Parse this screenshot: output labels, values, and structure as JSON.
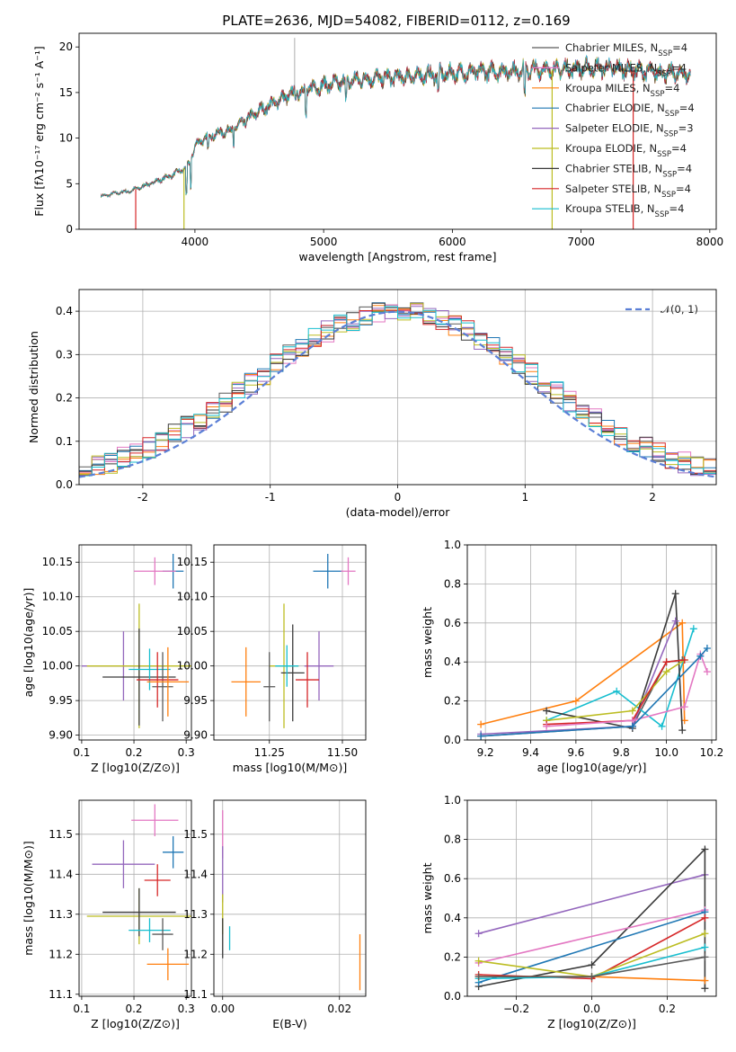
{
  "colors": {
    "Chabrier MILES": "#5a5a5a",
    "Salpeter MILES": "#e377c2",
    "Kroupa MILES": "#ff7f0e",
    "Chabrier ELODIE": "#1f77b4",
    "Salpeter ELODIE": "#9467bd",
    "Kroupa ELODIE": "#bcbd22",
    "Chabrier STELIB": "#3a3a3a",
    "Salpeter STELIB": "#d62728",
    "Kroupa STELIB": "#17becf"
  },
  "chart_data": [
    {
      "id": "spectrum",
      "type": "line",
      "title": "PLATE=2636, MJD=54082, FIBERID=0112, z=0.169",
      "xlabel": "wavelength [Angstrom, rest frame]",
      "ylabel": "Flux [fλ10⁻¹⁷ erg cm⁻² s⁻¹ A⁻¹]",
      "xlim": [
        3100,
        8050
      ],
      "ylim": [
        0,
        21.5
      ],
      "xticks": [
        4000,
        5000,
        6000,
        7000,
        8000
      ],
      "yticks": [
        0,
        5,
        10,
        15,
        20
      ],
      "grid": false,
      "legend_position": "right",
      "legend": [
        "Chabrier MILES, N_SSP=4",
        "Salpeter MILES, N_SSP=4",
        "Kroupa MILES, N_SSP=4",
        "Chabrier ELODIE, N_SSP=4",
        "Salpeter ELODIE, N_SSP=3",
        "Kroupa ELODIE, N_SSP=4",
        "Chabrier STELIB, N_SSP=4",
        "Salpeter STELIB, N_SSP=4",
        "Kroupa STELIB, N_SSP=4"
      ],
      "continuum": {
        "x": [
          3270,
          3400,
          3500,
          3650,
          3800,
          3900,
          3960,
          4000,
          4100,
          4300,
          4500,
          4700,
          4900,
          5100,
          5300,
          5500,
          5700,
          5900,
          6100,
          6300,
          6500,
          6700,
          6900,
          7100,
          7300,
          7500,
          7700,
          7850
        ],
        "y": [
          3.6,
          4.0,
          4.2,
          5.0,
          5.8,
          6.5,
          7.2,
          9.2,
          10.2,
          11.0,
          13.0,
          14.5,
          15.5,
          16.0,
          16.5,
          16.6,
          16.8,
          17.0,
          17.2,
          17.3,
          17.4,
          17.5,
          17.6,
          17.7,
          17.6,
          17.3,
          17.1,
          17.0
        ]
      }
    },
    {
      "id": "residuals",
      "type": "histogram",
      "xlabel": "(data-model)/error",
      "ylabel": "Normed distribution",
      "xlim": [
        -2.5,
        2.5
      ],
      "ylim": [
        0,
        0.45
      ],
      "xticks": [
        -2,
        -1,
        0,
        1,
        2
      ],
      "yticks": [
        0.0,
        0.1,
        0.2,
        0.3,
        0.4
      ],
      "grid": true,
      "legend": [
        "𝒩(0, 1)"
      ],
      "legend_position": "top-right",
      "bin_width": 0.1
    },
    {
      "id": "age-vs-Z",
      "type": "errorbar",
      "xlabel": "Z [log10(Z/Z⊙)]",
      "ylabel": "age [log10(age/yr)]",
      "xlim": [
        0.095,
        0.31
      ],
      "ylim": [
        9.893,
        10.175
      ],
      "xticks": [
        0.1,
        0.2,
        0.3
      ],
      "yticks": [
        9.9,
        9.95,
        10.0,
        10.05,
        10.1,
        10.15
      ],
      "points": [
        {
          "model": "Chabrier ELODIE",
          "x": 0.275,
          "xerr": 0.02,
          "y": 10.137,
          "yerr": 0.025
        },
        {
          "model": "Salpeter MILES",
          "x": 0.24,
          "xerr": 0.04,
          "y": 10.137,
          "yerr": 0.02
        },
        {
          "model": "Salpeter ELODIE",
          "x": 0.18,
          "xerr": 0.08,
          "y": 10.0,
          "yerr": 0.05
        },
        {
          "model": "Kroupa ELODIE",
          "x": 0.21,
          "xerr": 0.1,
          "y": 10.0,
          "yerr": 0.09
        },
        {
          "model": "Chabrier STELIB",
          "x": 0.21,
          "xerr": 0.07,
          "y": 9.984,
          "yerr": 0.07
        },
        {
          "model": "Kroupa STELIB",
          "x": 0.23,
          "xerr": 0.04,
          "y": 9.995,
          "yerr": 0.03
        },
        {
          "model": "Chabrier MILES",
          "x": 0.255,
          "xerr": 0.02,
          "y": 9.97,
          "yerr": 0.05
        },
        {
          "model": "Salpeter STELIB",
          "x": 0.245,
          "xerr": 0.04,
          "y": 9.98,
          "yerr": 0.04
        },
        {
          "model": "Kroupa MILES",
          "x": 0.265,
          "xerr": 0.04,
          "y": 9.977,
          "yerr": 0.05
        }
      ]
    },
    {
      "id": "age-vs-mass",
      "type": "errorbar",
      "xlabel": "mass [log10(M/M⊙)]",
      "ylabel": "",
      "xlim": [
        11.06,
        11.58
      ],
      "ylim": [
        9.893,
        10.175
      ],
      "xticks": [
        11.25,
        11.5
      ],
      "yticks": [
        9.9,
        9.95,
        10.0,
        10.05,
        10.1,
        10.15
      ],
      "points": [
        {
          "model": "Chabrier ELODIE",
          "x": 11.45,
          "xerr": 0.05,
          "y": 10.137,
          "yerr": 0.025
        },
        {
          "model": "Salpeter MILES",
          "x": 11.52,
          "xerr": 0.025,
          "y": 10.137,
          "yerr": 0.02
        },
        {
          "model": "Salpeter ELODIE",
          "x": 11.42,
          "xerr": 0.05,
          "y": 10.0,
          "yerr": 0.05
        },
        {
          "model": "Kroupa ELODIE",
          "x": 11.3,
          "xerr": 0.05,
          "y": 10.0,
          "yerr": 0.09
        },
        {
          "model": "Chabrier STELIB",
          "x": 11.33,
          "xerr": 0.04,
          "y": 9.99,
          "yerr": 0.07
        },
        {
          "model": "Kroupa STELIB",
          "x": 11.31,
          "xerr": 0.04,
          "y": 10.0,
          "yerr": 0.03
        },
        {
          "model": "Chabrier MILES",
          "x": 11.25,
          "xerr": 0.02,
          "y": 9.97,
          "yerr": 0.05
        },
        {
          "model": "Salpeter STELIB",
          "x": 11.38,
          "xerr": 0.04,
          "y": 9.98,
          "yerr": 0.04
        },
        {
          "model": "Kroupa MILES",
          "x": 11.17,
          "xerr": 0.05,
          "y": 9.977,
          "yerr": 0.05
        }
      ]
    },
    {
      "id": "mass-weight-vs-age",
      "type": "line",
      "xlabel": "age [log10(age/yr)]",
      "ylabel": "mass weight",
      "xlim": [
        9.12,
        10.22
      ],
      "ylim": [
        0,
        1.0
      ],
      "xticks": [
        9.2,
        9.4,
        9.6,
        9.8,
        10.0,
        10.2
      ],
      "yticks": [
        0.0,
        0.2,
        0.4,
        0.6,
        0.8,
        1.0
      ],
      "series": [
        {
          "model": "Kroupa MILES",
          "x": [
            9.18,
            9.6,
            10.07,
            10.08
          ],
          "y": [
            0.08,
            0.2,
            0.6,
            0.1
          ]
        },
        {
          "model": "Chabrier MILES",
          "x": [
            9.18,
            9.85,
            10.0,
            10.07
          ],
          "y": [
            0.02,
            0.07,
            0.4,
            0.41
          ]
        },
        {
          "model": "Kroupa STELIB",
          "x": [
            9.47,
            9.78,
            9.98,
            10.12
          ],
          "y": [
            0.1,
            0.25,
            0.07,
            0.57
          ]
        },
        {
          "model": "Chabrier STELIB",
          "x": [
            9.47,
            9.85,
            10.04,
            10.07
          ],
          "y": [
            0.15,
            0.06,
            0.75,
            0.05
          ]
        },
        {
          "model": "Salpeter ELODIE",
          "x": [
            9.18,
            9.85,
            10.04
          ],
          "y": [
            0.03,
            0.07,
            0.61
          ]
        },
        {
          "model": "Kroupa ELODIE",
          "x": [
            9.47,
            9.85,
            10.0,
            10.08
          ],
          "y": [
            0.1,
            0.15,
            0.35,
            0.41
          ]
        },
        {
          "model": "Salpeter STELIB",
          "x": [
            9.47,
            9.85,
            10.0,
            10.08
          ],
          "y": [
            0.08,
            0.1,
            0.4,
            0.41
          ]
        },
        {
          "model": "Salpeter MILES",
          "x": [
            9.47,
            9.85,
            10.08,
            10.15,
            10.18
          ],
          "y": [
            0.07,
            0.1,
            0.17,
            0.44,
            0.35
          ]
        },
        {
          "model": "Chabrier ELODIE",
          "x": [
            9.18,
            9.85,
            10.15,
            10.18
          ],
          "y": [
            0.02,
            0.07,
            0.43,
            0.47
          ]
        }
      ]
    },
    {
      "id": "mass-vs-Z",
      "type": "errorbar",
      "xlabel": "Z [log10(Z/Z⊙)]",
      "ylabel": "mass [log10(M/M⊙)]",
      "xlim": [
        0.095,
        0.31
      ],
      "ylim": [
        11.095,
        11.585
      ],
      "xticks": [
        0.1,
        0.2,
        0.3
      ],
      "yticks": [
        11.1,
        11.2,
        11.3,
        11.4,
        11.5
      ],
      "points": [
        {
          "model": "Salpeter MILES",
          "x": 0.24,
          "xerr": 0.045,
          "y": 11.535,
          "yerr": 0.04
        },
        {
          "model": "Chabrier ELODIE",
          "x": 0.275,
          "xerr": 0.02,
          "y": 11.455,
          "yerr": 0.04
        },
        {
          "model": "Salpeter ELODIE",
          "x": 0.18,
          "xerr": 0.06,
          "y": 11.425,
          "yerr": 0.06
        },
        {
          "model": "Salpeter STELIB",
          "x": 0.245,
          "xerr": 0.025,
          "y": 11.385,
          "yerr": 0.04
        },
        {
          "model": "Kroupa ELODIE",
          "x": 0.21,
          "xerr": 0.1,
          "y": 11.295,
          "yerr": 0.07
        },
        {
          "model": "Chabrier STELIB",
          "x": 0.21,
          "xerr": 0.07,
          "y": 11.305,
          "yerr": 0.06
        },
        {
          "model": "Kroupa STELIB",
          "x": 0.23,
          "xerr": 0.04,
          "y": 11.26,
          "yerr": 0.03
        },
        {
          "model": "Chabrier MILES",
          "x": 0.255,
          "xerr": 0.02,
          "y": 11.25,
          "yerr": 0.04
        },
        {
          "model": "Kroupa MILES",
          "x": 0.265,
          "xerr": 0.04,
          "y": 11.175,
          "yerr": 0.04
        }
      ]
    },
    {
      "id": "mass-vs-EBV",
      "type": "errorbar",
      "xlabel": "E(B-V)",
      "ylabel": "",
      "xlim": [
        -0.0015,
        0.0245
      ],
      "ylim": [
        11.095,
        11.585
      ],
      "xticks": [
        0.0,
        0.02
      ],
      "xtick_labels": [
        "0.00",
        "0.02"
      ],
      "yticks": [
        11.1,
        11.2,
        11.3,
        11.4,
        11.5
      ],
      "points": [
        {
          "model": "Salpeter MILES",
          "x": 0.0,
          "yerr": 0.06,
          "y": 11.5
        },
        {
          "model": "Salpeter ELODIE",
          "x": 0.0,
          "yerr": 0.07,
          "y": 11.4
        },
        {
          "model": "Kroupa ELODIE",
          "x": 0.0,
          "yerr": 0.05,
          "y": 11.3
        },
        {
          "model": "Chabrier STELIB",
          "x": 0.0,
          "yerr": 0.05,
          "y": 11.24
        },
        {
          "model": "Kroupa STELIB",
          "x": 0.0012,
          "yerr": 0.03,
          "y": 11.24
        },
        {
          "model": "Kroupa MILES",
          "x": 0.0235,
          "yerr": 0.07,
          "y": 11.18
        }
      ]
    },
    {
      "id": "mass-weight-vs-Z",
      "type": "line",
      "xlabel": "Z [log10(Z/Z⊙)]",
      "ylabel": "mass weight",
      "xlim": [
        -0.33,
        0.33
      ],
      "ylim": [
        0,
        1.0
      ],
      "xticks": [
        -0.2,
        0.0,
        0.2
      ],
      "xtick_labels": [
        "−0.2",
        "0.0",
        "0.2"
      ],
      "yticks": [
        0.0,
        0.2,
        0.4,
        0.6,
        0.8,
        1.0
      ],
      "series": [
        {
          "model": "Salpeter ELODIE",
          "x": [
            -0.3,
            0.3
          ],
          "y": [
            0.32,
            0.62
          ]
        },
        {
          "model": "Chabrier STELIB",
          "x": [
            -0.3,
            0.0,
            0.3,
            0.3
          ],
          "y": [
            0.05,
            0.16,
            0.75,
            0.04
          ]
        },
        {
          "model": "Salpeter MILES",
          "x": [
            -0.3,
            0.3
          ],
          "y": [
            0.17,
            0.44
          ]
        },
        {
          "model": "Chabrier ELODIE",
          "x": [
            -0.3,
            0.3
          ],
          "y": [
            0.07,
            0.43
          ]
        },
        {
          "model": "Salpeter STELIB",
          "x": [
            -0.3,
            0.0,
            0.3
          ],
          "y": [
            0.11,
            0.09,
            0.4
          ]
        },
        {
          "model": "Kroupa ELODIE",
          "x": [
            -0.3,
            0.0,
            0.3
          ],
          "y": [
            0.18,
            0.1,
            0.32
          ]
        },
        {
          "model": "Kroupa STELIB",
          "x": [
            -0.3,
            0.0,
            0.3
          ],
          "y": [
            0.09,
            0.1,
            0.25
          ]
        },
        {
          "model": "Kroupa MILES",
          "x": [
            -0.3,
            0.0,
            0.3
          ],
          "y": [
            0.1,
            0.1,
            0.08
          ]
        },
        {
          "model": "Chabrier MILES",
          "x": [
            -0.3,
            0.0,
            0.3
          ],
          "y": [
            0.1,
            0.1,
            0.2
          ]
        }
      ]
    }
  ]
}
